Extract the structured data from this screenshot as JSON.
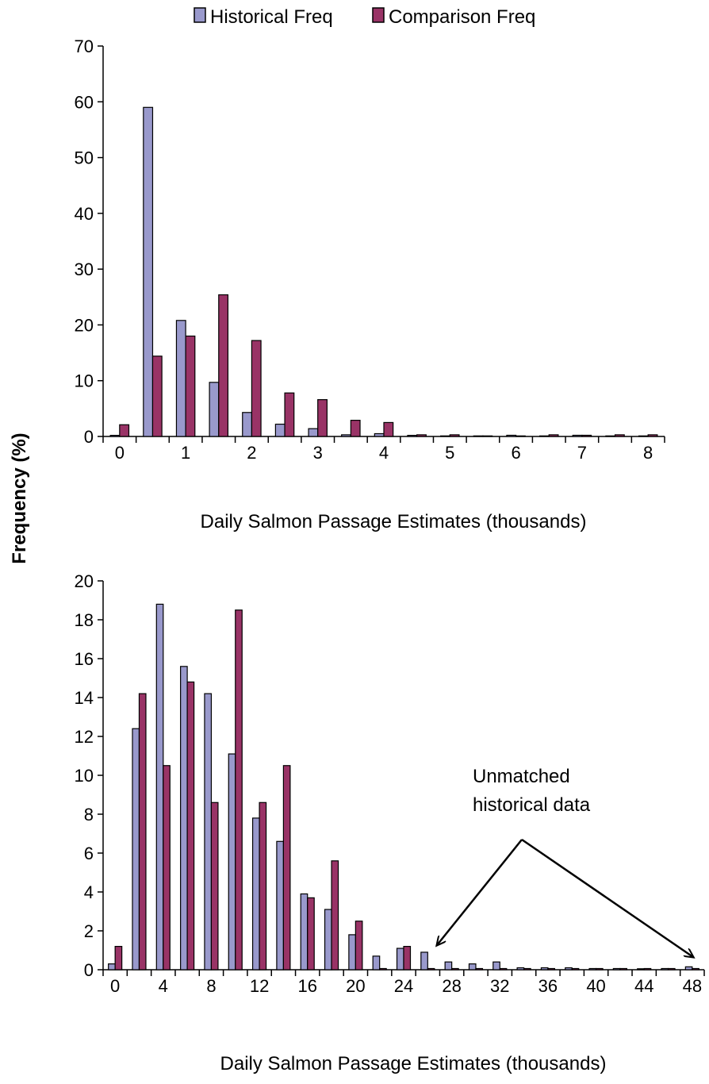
{
  "shared": {
    "ylabel": "Frequency (%)",
    "legend": [
      {
        "name": "Historical Freq",
        "color": "#9999cc"
      },
      {
        "name": "Comparison Freq",
        "color": "#993366"
      }
    ]
  },
  "chart_data": [
    {
      "type": "bar",
      "title": "",
      "xlabel": "Daily Salmon Passage Estimates (thousands)",
      "ylabel": "Frequency (%)",
      "ylim": [
        0,
        70
      ],
      "yticks": [
        0,
        10,
        20,
        30,
        40,
        50,
        60,
        70
      ],
      "xtick_labels": [
        "0",
        "1",
        "2",
        "3",
        "4",
        "5",
        "6",
        "7",
        "8"
      ],
      "categories": [
        "0",
        "0.5",
        "1",
        "1.5",
        "2",
        "2.5",
        "3",
        "3.5",
        "4",
        "4.5",
        "5",
        "5.5",
        "6",
        "6.5",
        "7",
        "7.5",
        "8"
      ],
      "legend_position": "top",
      "grid": false,
      "series": [
        {
          "name": "Historical Freq",
          "color": "#9999cc",
          "values": [
            0.2,
            59,
            20.8,
            9.7,
            4.3,
            2.2,
            1.4,
            0.3,
            0.5,
            0.2,
            0.1,
            0.1,
            0.0,
            0.1,
            0.0,
            0.1,
            0.1
          ]
        },
        {
          "name": "Comparison Freq",
          "color": "#993366",
          "values": [
            2.1,
            14.4,
            18.0,
            25.4,
            17.2,
            7.8,
            6.6,
            2.9,
            2.5,
            0.3,
            0.3,
            0.1,
            0.1,
            0.3,
            0.0,
            0.3,
            0.3
          ]
        }
      ]
    },
    {
      "type": "bar",
      "title": "",
      "xlabel": "Daily Salmon Passage Estimates (thousands)",
      "ylabel": "Frequency (%)",
      "ylim": [
        0,
        20
      ],
      "yticks": [
        0,
        2,
        4,
        6,
        8,
        10,
        12,
        14,
        16,
        18,
        20
      ],
      "xtick_labels": [
        "0",
        "4",
        "8",
        "12",
        "16",
        "20",
        "24",
        "28",
        "32",
        "36",
        "40",
        "44",
        "48"
      ],
      "categories": [
        "0",
        "2",
        "4",
        "6",
        "8",
        "10",
        "12",
        "14",
        "16",
        "18",
        "20",
        "22",
        "24",
        "26",
        "28",
        "30",
        "32",
        "34",
        "36",
        "38",
        "40",
        "42",
        "44",
        "46",
        "48"
      ],
      "legend_position": "top",
      "grid": false,
      "series": [
        {
          "name": "Historical Freq",
          "color": "#9999cc",
          "values": [
            0.3,
            12.4,
            18.8,
            15.6,
            14.2,
            11.1,
            7.8,
            6.6,
            3.9,
            3.1,
            1.8,
            0.7,
            1.1,
            0.9,
            0.4,
            0.3,
            0.4,
            0.1,
            0.1,
            0.1,
            0.0,
            0.0,
            0.05,
            0.0,
            0.15
          ]
        },
        {
          "name": "Comparison Freq",
          "color": "#993366",
          "values": [
            1.2,
            14.2,
            10.5,
            14.8,
            8.6,
            18.5,
            8.6,
            10.5,
            3.7,
            5.6,
            2.5,
            0.0,
            1.2,
            0.0,
            0.0,
            0.0,
            0.0,
            0.0,
            0.0,
            0.0,
            0.0,
            0.0,
            0.0,
            0.0,
            0.0
          ]
        }
      ],
      "annotation": "Unmatched\nhistorical data"
    }
  ]
}
